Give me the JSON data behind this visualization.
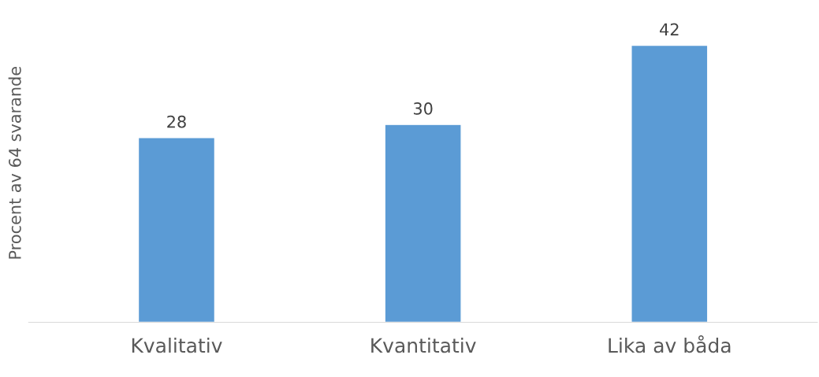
{
  "chart_data": {
    "type": "bar",
    "ylabel": "Procent av 64 svarande",
    "categories": [
      "Kvalitativ",
      "Kvantitativ",
      "Lika av båda"
    ],
    "values": [
      28,
      30,
      42
    ],
    "color": "#5b9bd5",
    "data_labels": true,
    "grid": false,
    "legend": false
  }
}
